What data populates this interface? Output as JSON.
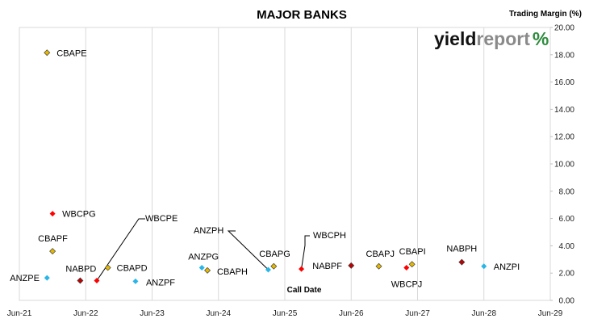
{
  "chart_data": {
    "type": "scatter",
    "title": "MAJOR BANKS",
    "xlabel": "Call Date",
    "ylabel": "Trading Margin  (%)",
    "x_ticks": [
      "Jun-21",
      "Jun-22",
      "Jun-23",
      "Jun-24",
      "Jun-25",
      "Jun-26",
      "Jun-27",
      "Jun-28",
      "Jun-29"
    ],
    "y_ticks": [
      "0.00",
      "2.00",
      "4.00",
      "6.00",
      "8.00",
      "10.00",
      "12.00",
      "14.00",
      "16.00",
      "18.00",
      "20.00"
    ],
    "xlim": [
      "2021-06",
      "2029-06"
    ],
    "ylim": [
      0,
      20
    ],
    "y_axis_side": "right",
    "grid": "vertical",
    "colors": {
      "ANZ": "#29b6e6",
      "CBA": "#e6b800",
      "NAB": "#c00000",
      "WBC": "#ff0000"
    },
    "points": [
      {
        "label": "CBAPE",
        "issuer": "CBA",
        "x": "2021-11",
        "y": 18.15
      },
      {
        "label": "WBCPG",
        "issuer": "WBC",
        "x": "2021-12",
        "y": 6.35
      },
      {
        "label": "CBAPF",
        "issuer": "CBA",
        "x": "2021-12",
        "y": 3.6
      },
      {
        "label": "ANZPE",
        "issuer": "ANZ",
        "x": "2021-11",
        "y": 1.65
      },
      {
        "label": "NABPD",
        "issuer": "NAB",
        "x": "2022-05",
        "y": 1.45
      },
      {
        "label": "WBCPE",
        "issuer": "WBC",
        "x": "2022-08",
        "y": 1.45
      },
      {
        "label": "CBAPD",
        "issuer": "CBA",
        "x": "2022-10",
        "y": 2.4
      },
      {
        "label": "ANZPF",
        "issuer": "ANZ",
        "x": "2023-03",
        "y": 1.4
      },
      {
        "label": "ANZPG",
        "issuer": "ANZ",
        "x": "2024-03",
        "y": 2.4
      },
      {
        "label": "CBAPH",
        "issuer": "CBA",
        "x": "2024-04",
        "y": 2.2
      },
      {
        "label": "ANZPH",
        "issuer": "ANZ",
        "x": "2025-03",
        "y": 2.25
      },
      {
        "label": "CBAPG",
        "issuer": "CBA",
        "x": "2025-04",
        "y": 2.5
      },
      {
        "label": "WBCPH",
        "issuer": "WBC",
        "x": "2025-09",
        "y": 2.3
      },
      {
        "label": "NABPF",
        "issuer": "NAB",
        "x": "2026-06",
        "y": 2.55
      },
      {
        "label": "CBAPJ",
        "issuer": "CBA",
        "x": "2026-11",
        "y": 2.5
      },
      {
        "label": "WBCPJ",
        "issuer": "WBC",
        "x": "2027-04",
        "y": 2.4
      },
      {
        "label": "CBAPI",
        "issuer": "CBA",
        "x": "2027-05",
        "y": 2.65
      },
      {
        "label": "NABPH",
        "issuer": "NAB",
        "x": "2028-02",
        "y": 2.8
      },
      {
        "label": "ANZPI",
        "issuer": "ANZ",
        "x": "2028-06",
        "y": 2.5
      }
    ]
  },
  "logo": {
    "part1": "yield",
    "part2": "report",
    "part3": "%"
  }
}
